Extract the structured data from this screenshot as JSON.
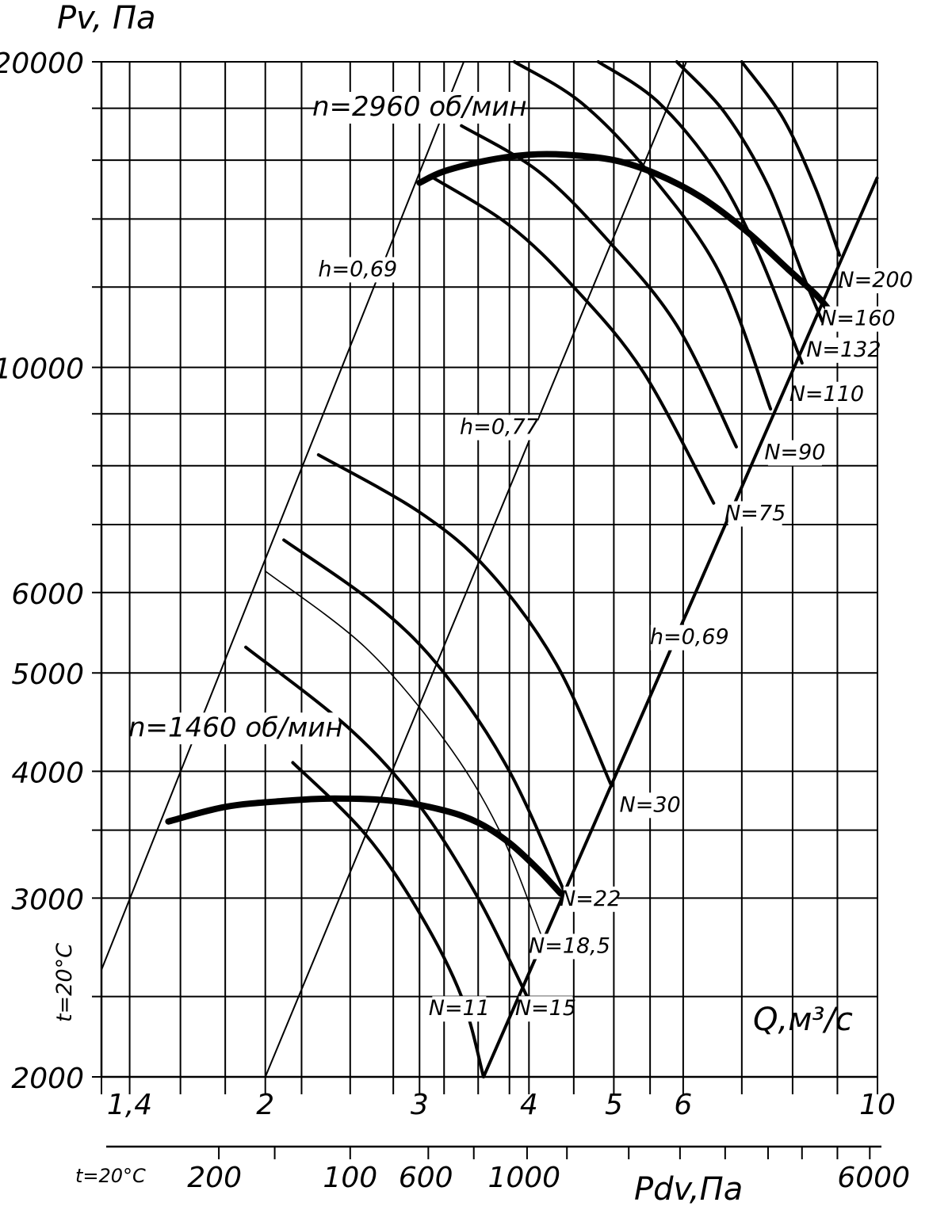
{
  "chart_data": {
    "type": "line",
    "ylabel": "Pv, Па",
    "xlabel": "Q,м³/с",
    "x_scale": "log",
    "y_scale": "log",
    "xlim": [
      1.3,
      10
    ],
    "ylim": [
      2000,
      20000
    ],
    "x_ticks": [
      {
        "value": 1.4,
        "label": "1,4"
      },
      {
        "value": 2,
        "label": "2"
      },
      {
        "value": 3,
        "label": "3"
      },
      {
        "value": 4,
        "label": "4"
      },
      {
        "value": 5,
        "label": "5"
      },
      {
        "value": 6,
        "label": "6"
      },
      {
        "value": 10,
        "label": "10"
      }
    ],
    "y_ticks": [
      {
        "value": 2000,
        "label": "2000"
      },
      {
        "value": 3000,
        "label": "3000"
      },
      {
        "value": 4000,
        "label": "4000"
      },
      {
        "value": 5000,
        "label": "5000"
      },
      {
        "value": 6000,
        "label": "6000"
      },
      {
        "value": 10000,
        "label": "10000"
      },
      {
        "value": 20000,
        "label": "20000"
      }
    ],
    "x_grid": [
      1.3,
      1.4,
      1.6,
      1.8,
      2,
      2.2,
      2.5,
      2.8,
      3,
      3.2,
      3.5,
      3.8,
      4,
      4.5,
      5,
      5.5,
      6,
      7,
      8,
      9,
      10
    ],
    "y_grid": [
      2000,
      2400,
      3000,
      3500,
      4000,
      5000,
      6000,
      7000,
      8000,
      9000,
      10000,
      12000,
      14000,
      16000,
      18000,
      20000
    ],
    "grid": true,
    "temperature_note": "t=20°C",
    "secondary_axis": {
      "label": "Pdv,Па",
      "temperature_note": "t=20°C",
      "ticks": [
        {
          "label": "200",
          "x_at": 1.75
        },
        {
          "label": "100",
          "x_at": 2.5
        },
        {
          "label": "600",
          "x_at": 3.05
        },
        {
          "label": "1000",
          "x_at": 3.95
        },
        {
          "label": "6000",
          "x_at": 9.9
        }
      ],
      "minor_marks_at": [
        1.77,
        2.05,
        2.5,
        3.07,
        3.46,
        3.98,
        4.42,
        5.2,
        5.95,
        6.7,
        7.5,
        8.2,
        9.0,
        9.8
      ]
    },
    "speed_curves": [
      {
        "name": "n=2960 об/мин",
        "points": [
          [
            3.0,
            15200
          ],
          [
            3.2,
            15600
          ],
          [
            3.6,
            16000
          ],
          [
            4.0,
            16200
          ],
          [
            4.4,
            16200
          ],
          [
            5.0,
            16000
          ],
          [
            5.6,
            15500
          ],
          [
            6.3,
            14700
          ],
          [
            7.1,
            13600
          ],
          [
            7.9,
            12500
          ],
          [
            8.5,
            11800
          ],
          [
            8.8,
            11400
          ]
        ]
      },
      {
        "name": "n=1460 об/мин",
        "points": [
          [
            1.55,
            3570
          ],
          [
            1.8,
            3690
          ],
          [
            2.1,
            3740
          ],
          [
            2.4,
            3760
          ],
          [
            2.8,
            3740
          ],
          [
            3.2,
            3660
          ],
          [
            3.5,
            3560
          ],
          [
            3.8,
            3400
          ],
          [
            4.1,
            3200
          ],
          [
            4.35,
            3030
          ]
        ]
      }
    ],
    "efficiency_lines": [
      {
        "name": "h=0,69",
        "points": [
          [
            1.3,
            2550
          ],
          [
            3.37,
            20000
          ]
        ]
      },
      {
        "name": "h=0,77",
        "points": [
          [
            2.0,
            2000
          ],
          [
            6.05,
            20000
          ]
        ]
      },
      {
        "name": "h=0,69",
        "points": [
          [
            3.55,
            2000
          ],
          [
            10.0,
            15400
          ]
        ]
      }
    ],
    "power_curves": [
      {
        "name": "N=11",
        "points": [
          [
            2.15,
            4080
          ],
          [
            2.6,
            3470
          ],
          [
            3.0,
            2900
          ],
          [
            3.35,
            2400
          ],
          [
            3.55,
            2000
          ]
        ]
      },
      {
        "name": "N=15",
        "points": [
          [
            1.9,
            5300
          ],
          [
            2.5,
            4400
          ],
          [
            3.0,
            3700
          ],
          [
            3.5,
            3000
          ],
          [
            3.98,
            2400
          ]
        ]
      },
      {
        "name": "N=18,5",
        "points": [
          [
            2.0,
            6300
          ],
          [
            2.6,
            5300
          ],
          [
            3.2,
            4300
          ],
          [
            3.7,
            3500
          ],
          [
            4.15,
            2730
          ]
        ]
      },
      {
        "name": "N=22",
        "points": [
          [
            2.1,
            6760
          ],
          [
            2.7,
            5800
          ],
          [
            3.2,
            5000
          ],
          [
            3.8,
            4000
          ],
          [
            4.4,
            3030
          ]
        ]
      },
      {
        "name": "N=30",
        "points": [
          [
            2.3,
            8200
          ],
          [
            3.0,
            7200
          ],
          [
            3.6,
            6300
          ],
          [
            4.3,
            5100
          ],
          [
            4.97,
            3870
          ]
        ]
      },
      {
        "name": "N=75",
        "points": [
          [
            3.1,
            15400
          ],
          [
            3.8,
            13800
          ],
          [
            4.5,
            12000
          ],
          [
            5.4,
            9900
          ],
          [
            6.5,
            7350
          ]
        ]
      },
      {
        "name": "N=90",
        "points": [
          [
            3.35,
            17300
          ],
          [
            4.1,
            15600
          ],
          [
            4.9,
            13400
          ],
          [
            5.9,
            11000
          ],
          [
            6.9,
            8350
          ]
        ]
      },
      {
        "name": "N=110",
        "points": [
          [
            3.85,
            20000
          ],
          [
            4.6,
            18200
          ],
          [
            5.5,
            15500
          ],
          [
            6.6,
            12400
          ],
          [
            7.55,
            9100
          ]
        ]
      },
      {
        "name": "N=132",
        "points": [
          [
            4.8,
            20000
          ],
          [
            5.6,
            18300
          ],
          [
            6.5,
            15700
          ],
          [
            7.3,
            13000
          ],
          [
            8.2,
            10100
          ]
        ]
      },
      {
        "name": "N=160",
        "points": [
          [
            5.9,
            20000
          ],
          [
            6.7,
            17800
          ],
          [
            7.5,
            15100
          ],
          [
            8.2,
            12400
          ],
          [
            8.65,
            11100
          ]
        ]
      },
      {
        "name": "N=200",
        "points": [
          [
            7.0,
            20000
          ],
          [
            7.8,
            17600
          ],
          [
            8.5,
            15000
          ],
          [
            9.05,
            12900
          ]
        ]
      }
    ],
    "annotations": [
      {
        "text": "n=2960 об/мин",
        "x": 3.0,
        "y": 17700
      },
      {
        "text": "n=1460 об/мин",
        "x": 1.85,
        "y": 4330
      },
      {
        "text": "h=0,69",
        "x": 2.55,
        "y": 12300
      },
      {
        "text": "h=0,77",
        "x": 3.7,
        "y": 8600
      },
      {
        "text": "h=0,69",
        "x": 6.1,
        "y": 5340
      },
      {
        "text": "N=11",
        "x": 3.33,
        "y": 2300
      },
      {
        "text": "N=15",
        "x": 4.18,
        "y": 2300
      },
      {
        "text": "N=18,5",
        "x": 4.45,
        "y": 2650
      },
      {
        "text": "N=22",
        "x": 4.7,
        "y": 2950
      },
      {
        "text": "N=30",
        "x": 5.5,
        "y": 3650
      },
      {
        "text": "N=75",
        "x": 7.25,
        "y": 7070
      },
      {
        "text": "N=90",
        "x": 8.05,
        "y": 8120
      },
      {
        "text": "N=110",
        "x": 8.75,
        "y": 9270
      },
      {
        "text": "N=132",
        "x": 9.15,
        "y": 10250
      },
      {
        "text": "N=160",
        "x": 9.5,
        "y": 11000
      },
      {
        "text": "N=200",
        "x": 9.95,
        "y": 12000
      }
    ]
  }
}
